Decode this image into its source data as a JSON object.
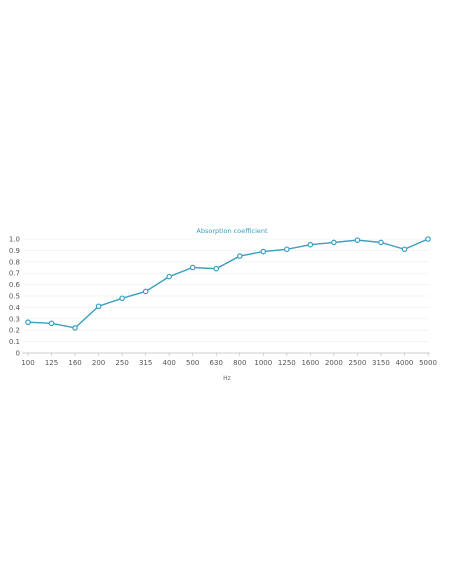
{
  "chart_data": {
    "type": "line",
    "title": "Absorption coefficient",
    "xlabel": "Hz",
    "ylabel": "",
    "categories": [
      "100",
      "125",
      "160",
      "200",
      "250",
      "315",
      "400",
      "500",
      "630",
      "800",
      "1000",
      "1250",
      "1600",
      "2000",
      "2500",
      "3150",
      "4000",
      "5000"
    ],
    "series": [
      {
        "values": [
          0.27,
          0.26,
          0.22,
          0.41,
          0.48,
          0.54,
          0.67,
          0.75,
          0.74,
          0.85,
          0.89,
          0.91,
          0.95,
          0.97,
          0.99,
          0.97,
          0.91,
          1.0
        ]
      }
    ],
    "ylim": [
      0,
      1.0
    ],
    "yticks": [
      "0",
      "0.1",
      "0.2",
      "0.3",
      "0.4",
      "0.5",
      "0.6",
      "0.7",
      "0.8",
      "0.9",
      "1.0"
    ],
    "grid": true,
    "legend": "none",
    "colors": {
      "series": "#3a9fc0",
      "title": "#3a9fc0"
    }
  }
}
